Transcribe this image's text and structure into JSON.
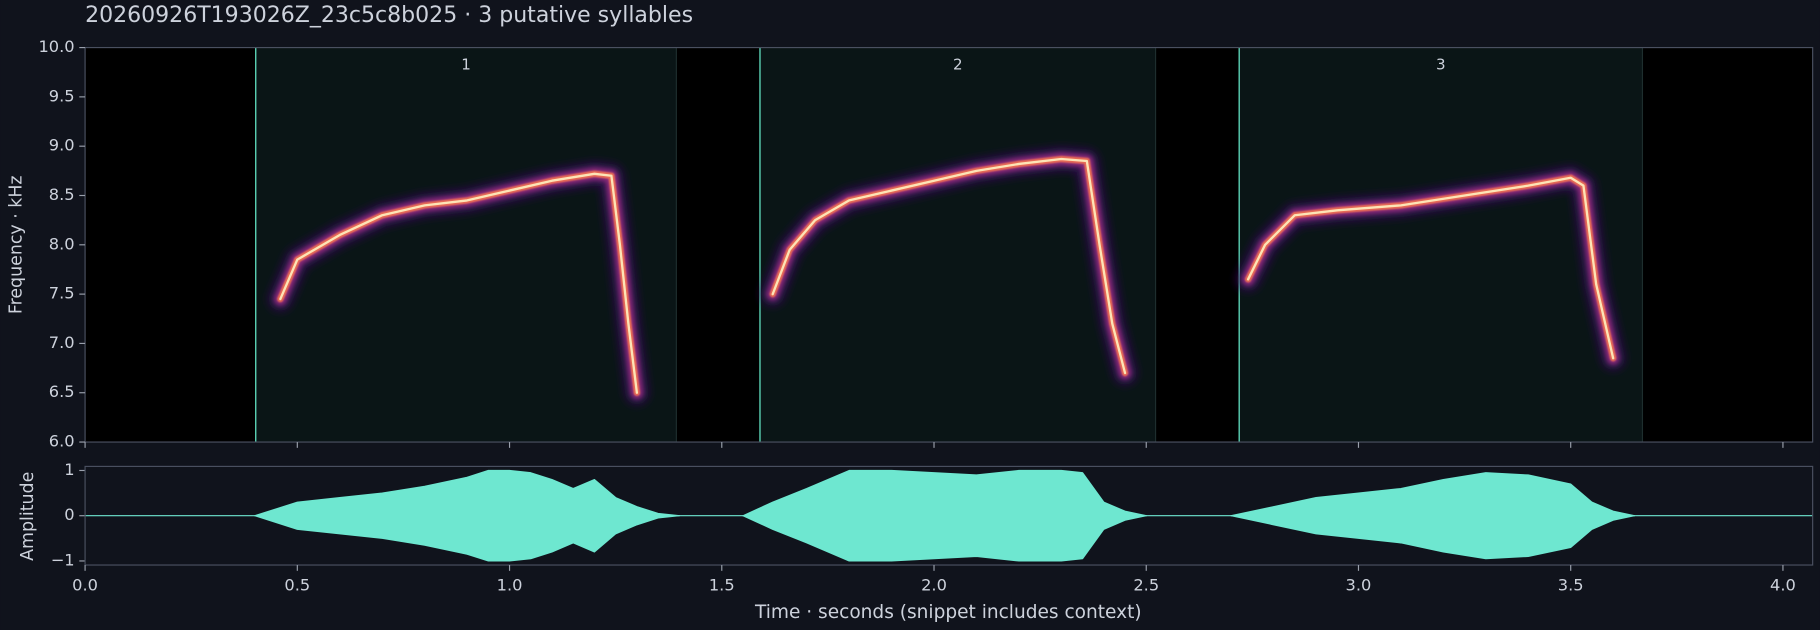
{
  "chart_data": [
    {
      "type": "spectrogram",
      "title": "20260926T193026Z_23c5c8b025  ·  3 putative syllables",
      "ylabel": "Frequency · kHz",
      "xlim": [
        0,
        4.07
      ],
      "xticks": [
        0,
        0.5,
        1,
        1.5,
        2,
        2.5,
        3,
        3.5,
        4
      ],
      "ylim": [
        6,
        10
      ],
      "yticks": [
        {
          "value": 6,
          "label": "6.0"
        },
        6.5,
        {
          "value": 7,
          "label": "7.0"
        },
        7.5,
        {
          "value": 8,
          "label": "8.0"
        },
        8.5,
        {
          "value": 9,
          "label": "9.0"
        },
        9.5,
        {
          "value": 10,
          "label": "10.0"
        }
      ],
      "syllables": [
        {
          "label": "1",
          "start": 0.402,
          "end": 1.393,
          "contour": {
            "x": [
              0.46,
              0.5,
              0.6,
              0.7,
              0.8,
              0.9,
              1.0,
              1.1,
              1.2,
              1.24,
              1.26,
              1.28,
              1.3
            ],
            "values": [
              7.45,
              7.85,
              8.1,
              8.3,
              8.4,
              8.45,
              8.55,
              8.65,
              8.72,
              8.7,
              8.0,
              7.2,
              6.5
            ]
          }
        },
        {
          "label": "2",
          "start": 1.59,
          "end": 2.522,
          "contour": {
            "x": [
              1.62,
              1.66,
              1.72,
              1.8,
              1.9,
              2.0,
              2.1,
              2.2,
              2.3,
              2.36,
              2.39,
              2.42,
              2.45
            ],
            "values": [
              7.5,
              7.95,
              8.25,
              8.45,
              8.55,
              8.65,
              8.75,
              8.82,
              8.87,
              8.85,
              8.0,
              7.2,
              6.7
            ]
          }
        },
        {
          "label": "3",
          "start": 2.719,
          "end": 3.669,
          "contour": {
            "x": [
              2.74,
              2.78,
              2.85,
              2.95,
              3.1,
              3.25,
              3.4,
              3.5,
              3.53,
              3.56,
              3.6
            ],
            "values": [
              7.65,
              8.0,
              8.3,
              8.35,
              8.4,
              8.5,
              8.6,
              8.68,
              8.6,
              7.6,
              6.85
            ]
          }
        }
      ]
    },
    {
      "type": "waveform",
      "ylabel": "Amplitude",
      "xlabel": "Time · seconds (snippet includes context)",
      "color": "#6ee7d0",
      "xlim": [
        0,
        4.07
      ],
      "xticks": [
        {
          "value": 0,
          "label": "0.0"
        },
        0.5,
        {
          "value": 1,
          "label": "1.0"
        },
        1.5,
        {
          "value": 2,
          "label": "2.0"
        },
        2.5,
        {
          "value": 3,
          "label": "3.0"
        },
        3.5,
        {
          "value": 4,
          "label": "4.0"
        }
      ],
      "ylim": [
        -1.09,
        1.09
      ],
      "yticks": [
        {
          "value": -1,
          "label": "−1"
        },
        0,
        1
      ],
      "series": [
        {
          "x": [
            0.4,
            0.5,
            0.6,
            0.7,
            0.8,
            0.9,
            0.95,
            1.0,
            1.05,
            1.1,
            1.15,
            1.2,
            1.25,
            1.3,
            1.35,
            1.4
          ],
          "values": [
            0,
            0.3,
            0.4,
            0.5,
            0.65,
            0.85,
            1,
            1,
            0.95,
            0.8,
            0.6,
            0.8,
            0.4,
            0.2,
            0.05,
            0
          ]
        },
        {
          "x": [
            1.55,
            1.62,
            1.7,
            1.8,
            1.9,
            2.0,
            2.1,
            2.2,
            2.3,
            2.35,
            2.4,
            2.45,
            2.5
          ],
          "values": [
            0,
            0.3,
            0.6,
            1,
            1,
            0.95,
            0.9,
            1,
            1,
            0.95,
            0.3,
            0.1,
            0
          ]
        },
        {
          "x": [
            2.7,
            2.8,
            2.9,
            3.0,
            3.1,
            3.2,
            3.3,
            3.4,
            3.5,
            3.55,
            3.6,
            3.65
          ],
          "values": [
            0,
            0.2,
            0.4,
            0.5,
            0.6,
            0.8,
            0.95,
            0.9,
            0.7,
            0.3,
            0.1,
            0
          ]
        }
      ]
    }
  ]
}
